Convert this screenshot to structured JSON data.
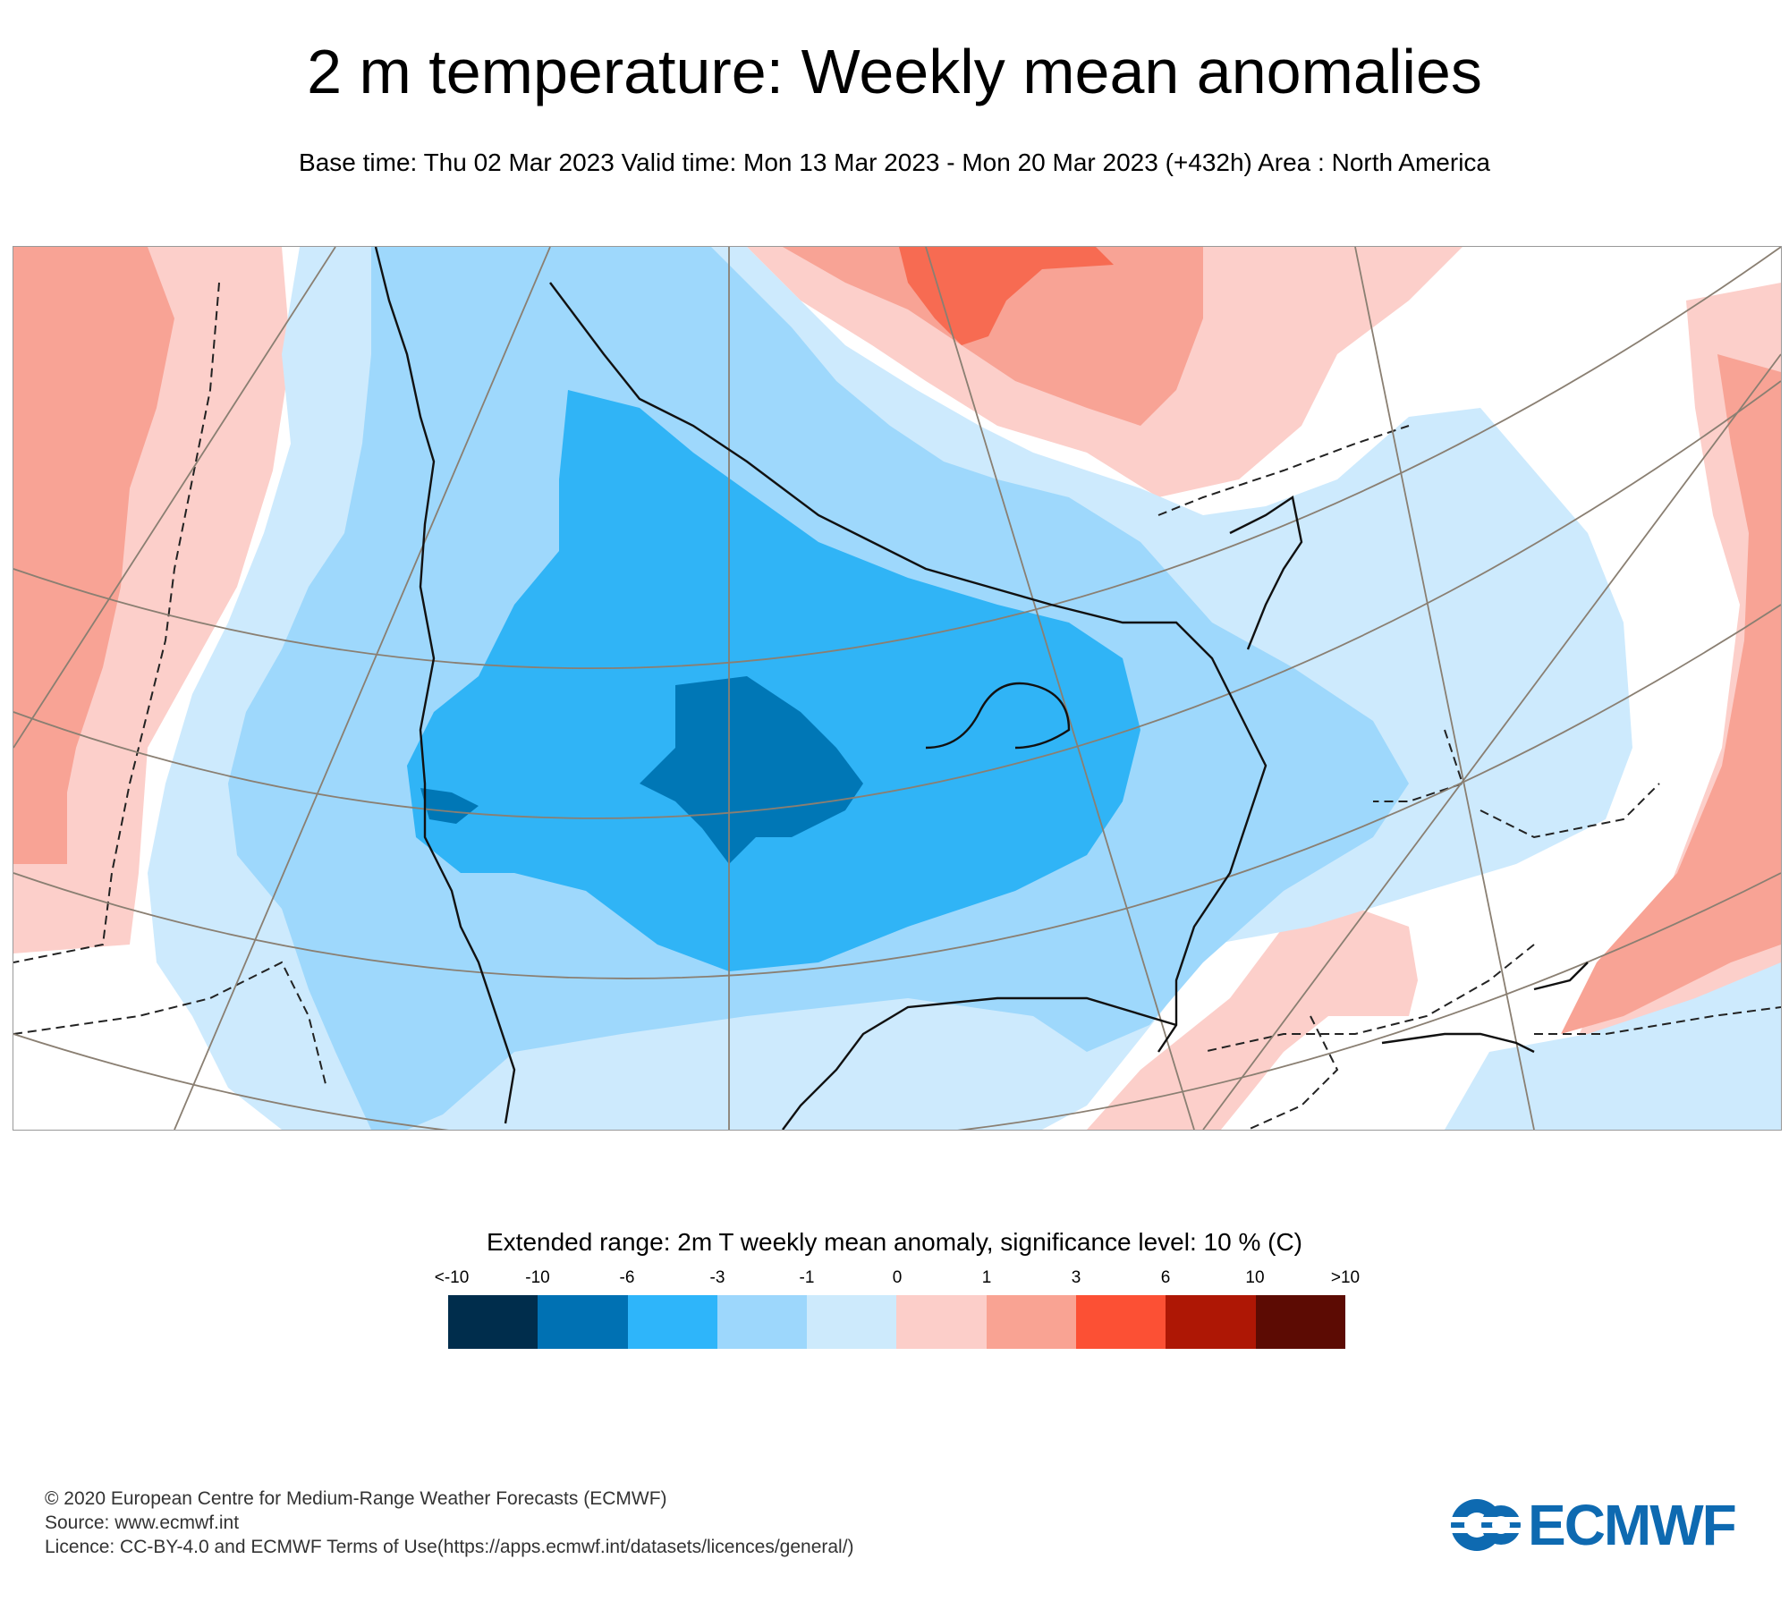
{
  "header": {
    "title": "2 m temperature: Weekly mean anomalies",
    "subtitle": "Base time: Thu 02 Mar 2023 Valid time: Mon 13 Mar 2023 - Mon 20 Mar 2023 (+432h) Area : North America"
  },
  "legend": {
    "title": "Extended range: 2m T weekly mean anomaly, significance level: 10 % (C)",
    "labels": [
      "<-10",
      "-10",
      "-6",
      "-3",
      "-1",
      "0",
      "1",
      "3",
      "6",
      "10",
      ">10"
    ],
    "colors": [
      "#002d4c",
      "#0071b3",
      "#2eb5fa",
      "#9dd7fc",
      "#cdeafc",
      "#fccec9",
      "#f9a393",
      "#fc5034",
      "#ae1705",
      "#5c0b03"
    ]
  },
  "map_colors": {
    "cold_3": "#0077b6",
    "cold_2": "#30b4f6",
    "cold_1": "#9ed8fc",
    "cold_0": "#cdeafd",
    "warm_0": "#fccfca",
    "warm_1": "#f8a395",
    "warm_2": "#f76b52",
    "coast": "#111111",
    "graticule": "#8a7f72"
  },
  "footer": {
    "copyright": "© 2020 European Centre for Medium-Range Weather Forecasts (ECMWF)",
    "source": "Source: www.ecmwf.int",
    "licence": "Licence: CC-BY-4.0 and ECMWF Terms of Use(https://apps.ecmwf.int/datasets/licences/general/)"
  },
  "logo": {
    "text": "ECMWF",
    "color": "#0e6ab1"
  }
}
